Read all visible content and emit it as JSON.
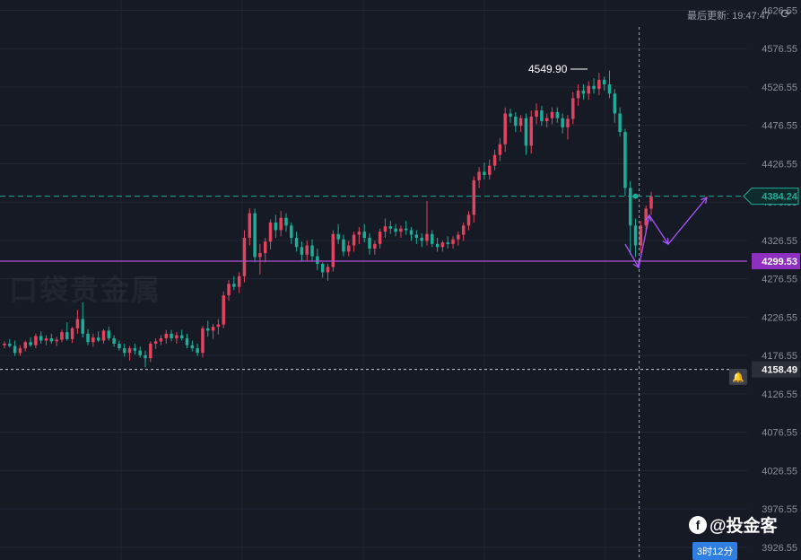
{
  "header": {
    "last_update_label": "最后更新:",
    "last_update_time": "19:47:47",
    "refresh_icon": "refresh-icon"
  },
  "watermark": "口袋贵金属",
  "brand": {
    "logo_icon": "f-logo-icon",
    "name": "@投金客"
  },
  "time_tag": "3时12分",
  "price_tags": {
    "current": "4384.24",
    "support": "4299.53",
    "alert": "4158.49",
    "peak_label": "4549.90"
  },
  "colors": {
    "bg": "#161a25",
    "up": "#e2435f",
    "down": "#1cae99",
    "support": "#b24ddc",
    "alert_line": "#c8ccd4",
    "arrow": "#a855f7"
  },
  "chart_data": {
    "type": "candlestick",
    "ylim": [
      3910,
      4640
    ],
    "y_ticks": [
      "4626.55",
      "4576.55",
      "4526.55",
      "4476.55",
      "4426.55",
      "4376.55",
      "4326.55",
      "4276.55",
      "4226.55",
      "4176.55",
      "4126.55",
      "4076.55",
      "4026.55",
      "3976.55",
      "3926.55"
    ],
    "grid": true,
    "horizontal_lines": [
      {
        "value": 4384.24,
        "style": "dashed",
        "color": "#1cae99"
      },
      {
        "value": 4299.53,
        "style": "solid",
        "color": "#b24ddc"
      },
      {
        "value": 4158.49,
        "style": "dashed",
        "color": "#c8ccd4"
      }
    ],
    "current_time_index": 121,
    "candles_ohlc": [
      [
        4190,
        4195,
        4186,
        4192
      ],
      [
        4192,
        4198,
        4187,
        4189
      ],
      [
        4189,
        4196,
        4176,
        4180
      ],
      [
        4180,
        4190,
        4176,
        4186
      ],
      [
        4186,
        4196,
        4182,
        4194
      ],
      [
        4194,
        4200,
        4188,
        4190
      ],
      [
        4190,
        4205,
        4186,
        4202
      ],
      [
        4202,
        4208,
        4192,
        4196
      ],
      [
        4196,
        4203,
        4190,
        4199
      ],
      [
        4199,
        4205,
        4192,
        4195
      ],
      [
        4195,
        4201,
        4189,
        4197
      ],
      [
        4197,
        4210,
        4194,
        4207
      ],
      [
        4207,
        4220,
        4196,
        4198
      ],
      [
        4198,
        4214,
        4193,
        4212
      ],
      [
        4212,
        4236,
        4205,
        4224
      ],
      [
        4224,
        4246,
        4200,
        4205
      ],
      [
        4205,
        4211,
        4190,
        4194
      ],
      [
        4194,
        4205,
        4188,
        4200
      ],
      [
        4200,
        4208,
        4194,
        4196
      ],
      [
        4196,
        4211,
        4192,
        4209
      ],
      [
        4209,
        4214,
        4196,
        4199
      ],
      [
        4199,
        4203,
        4188,
        4192
      ],
      [
        4192,
        4196,
        4183,
        4186
      ],
      [
        4186,
        4192,
        4175,
        4180
      ],
      [
        4180,
        4189,
        4170,
        4186
      ],
      [
        4186,
        4192,
        4178,
        4183
      ],
      [
        4183,
        4188,
        4174,
        4177
      ],
      [
        4177,
        4183,
        4161,
        4173
      ],
      [
        4173,
        4195,
        4168,
        4192
      ],
      [
        4192,
        4199,
        4185,
        4195
      ],
      [
        4195,
        4203,
        4190,
        4199
      ],
      [
        4199,
        4210,
        4192,
        4205
      ],
      [
        4205,
        4210,
        4195,
        4199
      ],
      [
        4199,
        4207,
        4192,
        4203
      ],
      [
        4203,
        4210,
        4196,
        4199
      ],
      [
        4199,
        4205,
        4186,
        4190
      ],
      [
        4190,
        4196,
        4182,
        4186
      ],
      [
        4186,
        4192,
        4176,
        4180
      ],
      [
        4180,
        4215,
        4174,
        4212
      ],
      [
        4212,
        4222,
        4201,
        4209
      ],
      [
        4209,
        4218,
        4198,
        4214
      ],
      [
        4214,
        4224,
        4204,
        4217
      ],
      [
        4217,
        4260,
        4212,
        4255
      ],
      [
        4255,
        4275,
        4248,
        4270
      ],
      [
        4270,
        4280,
        4262,
        4266
      ],
      [
        4266,
        4285,
        4258,
        4280
      ],
      [
        4280,
        4340,
        4272,
        4330
      ],
      [
        4330,
        4368,
        4320,
        4362
      ],
      [
        4362,
        4368,
        4298,
        4305
      ],
      [
        4305,
        4322,
        4282,
        4310
      ],
      [
        4310,
        4330,
        4298,
        4325
      ],
      [
        4325,
        4354,
        4315,
        4350
      ],
      [
        4350,
        4360,
        4330,
        4340
      ],
      [
        4340,
        4365,
        4332,
        4356
      ],
      [
        4356,
        4362,
        4338,
        4346
      ],
      [
        4346,
        4350,
        4322,
        4330
      ],
      [
        4330,
        4338,
        4312,
        4318
      ],
      [
        4318,
        4325,
        4300,
        4308
      ],
      [
        4308,
        4326,
        4300,
        4320
      ],
      [
        4320,
        4328,
        4300,
        4306
      ],
      [
        4306,
        4316,
        4288,
        4296
      ],
      [
        4296,
        4298,
        4278,
        4285
      ],
      [
        4285,
        4296,
        4274,
        4292
      ],
      [
        4292,
        4340,
        4286,
        4335
      ],
      [
        4335,
        4348,
        4322,
        4328
      ],
      [
        4328,
        4334,
        4306,
        4312
      ],
      [
        4312,
        4326,
        4306,
        4320
      ],
      [
        4320,
        4338,
        4312,
        4334
      ],
      [
        4334,
        4344,
        4322,
        4338
      ],
      [
        4338,
        4348,
        4324,
        4330
      ],
      [
        4330,
        4336,
        4308,
        4316
      ],
      [
        4316,
        4326,
        4308,
        4322
      ],
      [
        4322,
        4342,
        4316,
        4338
      ],
      [
        4338,
        4355,
        4330,
        4345
      ],
      [
        4345,
        4352,
        4335,
        4342
      ],
      [
        4342,
        4348,
        4332,
        4338
      ],
      [
        4338,
        4346,
        4330,
        4342
      ],
      [
        4342,
        4352,
        4334,
        4340
      ],
      [
        4340,
        4344,
        4326,
        4334
      ],
      [
        4334,
        4340,
        4322,
        4330
      ],
      [
        4330,
        4336,
        4318,
        4326
      ],
      [
        4326,
        4378,
        4320,
        4335
      ],
      [
        4335,
        4340,
        4318,
        4322
      ],
      [
        4322,
        4330,
        4312,
        4318
      ],
      [
        4318,
        4326,
        4312,
        4324
      ],
      [
        4324,
        4332,
        4316,
        4322
      ],
      [
        4322,
        4332,
        4316,
        4328
      ],
      [
        4328,
        4338,
        4320,
        4334
      ],
      [
        4334,
        4350,
        4326,
        4346
      ],
      [
        4346,
        4365,
        4340,
        4360
      ],
      [
        4360,
        4410,
        4350,
        4405
      ],
      [
        4405,
        4422,
        4395,
        4416
      ],
      [
        4416,
        4428,
        4406,
        4412
      ],
      [
        4412,
        4432,
        4406,
        4424
      ],
      [
        4424,
        4445,
        4418,
        4438
      ],
      [
        4438,
        4460,
        4430,
        4452
      ],
      [
        4452,
        4500,
        4442,
        4492
      ],
      [
        4492,
        4498,
        4480,
        4488
      ],
      [
        4488,
        4494,
        4468,
        4476
      ],
      [
        4476,
        4490,
        4468,
        4486
      ],
      [
        4486,
        4492,
        4438,
        4450
      ],
      [
        4450,
        4496,
        4440,
        4488
      ],
      [
        4488,
        4505,
        4478,
        4496
      ],
      [
        4496,
        4502,
        4476,
        4482
      ],
      [
        4482,
        4492,
        4474,
        4486
      ],
      [
        4486,
        4500,
        4478,
        4494
      ],
      [
        4494,
        4500,
        4480,
        4486
      ],
      [
        4486,
        4492,
        4466,
        4474
      ],
      [
        4474,
        4490,
        4458,
        4485
      ],
      [
        4485,
        4520,
        4478,
        4512
      ],
      [
        4512,
        4530,
        4502,
        4522
      ],
      [
        4522,
        4530,
        4510,
        4518
      ],
      [
        4518,
        4534,
        4510,
        4528
      ],
      [
        4528,
        4538,
        4518,
        4524
      ],
      [
        4524,
        4545,
        4516,
        4536
      ],
      [
        4536,
        4540,
        4522,
        4530
      ],
      [
        4530,
        4548,
        4512,
        4518
      ],
      [
        4518,
        4524,
        4480,
        4492
      ],
      [
        4492,
        4500,
        4462,
        4468
      ],
      [
        4468,
        4472,
        4385,
        4395
      ],
      [
        4395,
        4404,
        4308,
        4346
      ],
      [
        4346,
        4355,
        4305,
        4320
      ],
      [
        4320,
        4352,
        4310,
        4346
      ],
      [
        4346,
        4372,
        4336,
        4368
      ],
      [
        4368,
        4390,
        4360,
        4384
      ]
    ]
  }
}
